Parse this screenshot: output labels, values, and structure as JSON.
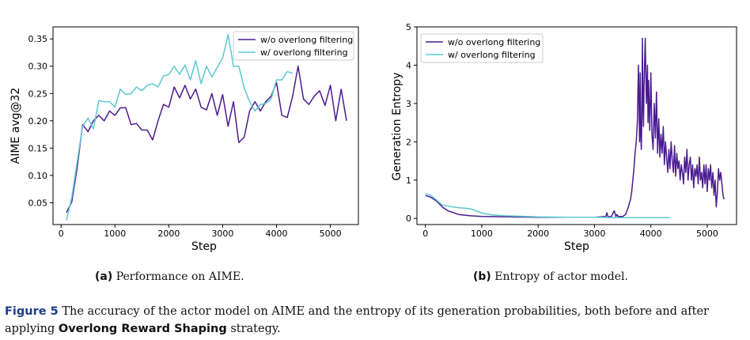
{
  "colors": {
    "without": "#4b1c8f",
    "with": "#5cc8d2"
  },
  "chart_data": [
    {
      "type": "line",
      "id": "a",
      "ylabel": "AIME avg@32",
      "xlabel": "Step",
      "xlim": [
        -150,
        5520
      ],
      "ylim": [
        0.01,
        0.372
      ],
      "xticks": [
        0,
        1000,
        2000,
        3000,
        4000,
        5000
      ],
      "yticks": [
        0.05,
        0.1,
        0.15,
        0.2,
        0.25,
        0.3,
        0.35
      ],
      "ytick_labels": [
        "0.05",
        "0.10",
        "0.15",
        "0.20",
        "0.25",
        "0.30",
        "0.35"
      ],
      "legend": [
        "w/o overlong filtering",
        "w/ overlong filtering"
      ],
      "legend_position": "top-right",
      "series": [
        {
          "name": "w/o overlong filtering",
          "x": [
            100,
            200,
            300,
            400,
            500,
            600,
            700,
            800,
            900,
            1000,
            1100,
            1200,
            1300,
            1400,
            1500,
            1600,
            1700,
            1800,
            1900,
            2000,
            2100,
            2200,
            2300,
            2400,
            2500,
            2600,
            2700,
            2800,
            2900,
            3000,
            3100,
            3200,
            3300,
            3400,
            3500,
            3600,
            3700,
            3800,
            3900,
            4000,
            4100,
            4200,
            4300,
            4400,
            4500,
            4600,
            4700,
            4800,
            4900,
            5000,
            5100,
            5200,
            5300
          ],
          "values": [
            0.032,
            0.052,
            0.115,
            0.193,
            0.18,
            0.2,
            0.21,
            0.2,
            0.218,
            0.21,
            0.224,
            0.224,
            0.193,
            0.195,
            0.183,
            0.183,
            0.165,
            0.2,
            0.23,
            0.225,
            0.262,
            0.242,
            0.265,
            0.24,
            0.258,
            0.225,
            0.22,
            0.25,
            0.21,
            0.248,
            0.19,
            0.235,
            0.16,
            0.17,
            0.218,
            0.235,
            0.218,
            0.235,
            0.245,
            0.27,
            0.21,
            0.206,
            0.245,
            0.3,
            0.24,
            0.23,
            0.245,
            0.255,
            0.228,
            0.265,
            0.2,
            0.258,
            0.2
          ]
        },
        {
          "name": "w/ overlong filtering",
          "x": [
            100,
            200,
            300,
            400,
            500,
            600,
            700,
            800,
            900,
            1000,
            1100,
            1200,
            1300,
            1400,
            1500,
            1600,
            1700,
            1800,
            1900,
            2000,
            2100,
            2200,
            2300,
            2400,
            2500,
            2600,
            2700,
            2800,
            2900,
            3000,
            3100,
            3200,
            3300,
            3400,
            3500,
            3600,
            3700,
            3800,
            3900,
            4000,
            4100,
            4200,
            4300
          ],
          "values": [
            0.018,
            0.06,
            0.125,
            0.19,
            0.205,
            0.185,
            0.237,
            0.235,
            0.235,
            0.225,
            0.258,
            0.248,
            0.25,
            0.262,
            0.255,
            0.265,
            0.268,
            0.262,
            0.282,
            0.285,
            0.3,
            0.285,
            0.302,
            0.275,
            0.31,
            0.268,
            0.3,
            0.28,
            0.298,
            0.315,
            0.358,
            0.3,
            0.3,
            0.26,
            0.235,
            0.218,
            0.23,
            0.232,
            0.24,
            0.275,
            0.275,
            0.29,
            0.287
          ]
        }
      ]
    },
    {
      "type": "line",
      "id": "b",
      "ylabel": "Generation Entropy",
      "xlabel": "Step",
      "xlim": [
        -150,
        5520
      ],
      "ylim": [
        -0.16,
        5.0
      ],
      "xticks": [
        0,
        1000,
        2000,
        3000,
        4000,
        5000
      ],
      "yticks": [
        0,
        1,
        2,
        3,
        4,
        5
      ],
      "ytick_labels": [
        "0",
        "1",
        "2",
        "3",
        "4",
        "5"
      ],
      "legend": [
        "w/o overlong filtering",
        "w/ overlong filtering"
      ],
      "legend_position": "top-left",
      "series": [
        {
          "name": "w/o overlong filtering",
          "x": [
            0,
            100,
            200,
            300,
            400,
            500,
            600,
            800,
            1000,
            1500,
            2000,
            2500,
            3000,
            3200,
            3220,
            3240,
            3300,
            3350,
            3380,
            3400,
            3420,
            3500,
            3550,
            3600,
            3640,
            3660,
            3680,
            3700,
            3720,
            3740,
            3760,
            3780,
            3800,
            3810,
            3820,
            3830,
            3840,
            3850,
            3860,
            3870,
            3880,
            3900,
            3920,
            3940,
            3950,
            3960,
            3980,
            4000,
            4020,
            4040,
            4060,
            4080,
            4100,
            4120,
            4140,
            4160,
            4180,
            4200,
            4220,
            4240,
            4260,
            4280,
            4300,
            4320,
            4340,
            4360,
            4380,
            4400,
            4420,
            4440,
            4460,
            4480,
            4500,
            4520,
            4540,
            4560,
            4580,
            4600,
            4620,
            4640,
            4660,
            4680,
            4700,
            4720,
            4740,
            4760,
            4780,
            4800,
            4820,
            4840,
            4860,
            4880,
            4900,
            4920,
            4940,
            4960,
            4980,
            5000,
            5020,
            5040,
            5060,
            5080,
            5100,
            5120,
            5140,
            5160,
            5180,
            5200,
            5220,
            5240,
            5260,
            5280,
            5300
          ],
          "values": [
            0.6,
            0.55,
            0.45,
            0.3,
            0.2,
            0.15,
            0.1,
            0.07,
            0.05,
            0.04,
            0.03,
            0.03,
            0.03,
            0.05,
            0.15,
            0.04,
            0.05,
            0.2,
            0.05,
            0.1,
            0.05,
            0.05,
            0.1,
            0.3,
            0.5,
            0.7,
            1.0,
            1.3,
            1.7,
            2.0,
            2.5,
            4.0,
            2.0,
            3.8,
            2.2,
            1.8,
            2.6,
            4.7,
            3.0,
            2.4,
            3.5,
            4.7,
            3.0,
            4.0,
            2.5,
            3.6,
            2.3,
            3.8,
            2.2,
            1.8,
            3.0,
            2.1,
            3.3,
            1.7,
            2.6,
            1.6,
            2.2,
            1.7,
            2.4,
            1.4,
            2.0,
            1.6,
            1.2,
            1.8,
            1.3,
            2.0,
            1.5,
            1.2,
            1.9,
            1.1,
            1.7,
            1.3,
            1.5,
            1.0,
            1.4,
            1.2,
            0.9,
            1.6,
            1.2,
            1.8,
            1.0,
            1.4,
            1.6,
            1.0,
            1.4,
            0.8,
            1.3,
            1.1,
            1.4,
            0.9,
            1.6,
            1.0,
            1.2,
            0.8,
            1.4,
            0.9,
            1.4,
            0.7,
            1.3,
            1.0,
            1.4,
            0.8,
            1.2,
            0.6,
            1.0,
            0.3,
            0.7,
            1.3,
            1.0,
            1.2,
            0.9,
            0.6,
            0.5
          ]
        },
        {
          "name": "w/ overlong filtering",
          "x": [
            0,
            100,
            200,
            300,
            400,
            500,
            600,
            700,
            800,
            900,
            1000,
            1200,
            1400,
            1600,
            1800,
            2000,
            2500,
            3000,
            3500,
            4000,
            4340
          ],
          "values": [
            0.65,
            0.6,
            0.48,
            0.35,
            0.32,
            0.3,
            0.28,
            0.27,
            0.25,
            0.2,
            0.14,
            0.09,
            0.07,
            0.06,
            0.05,
            0.04,
            0.03,
            0.03,
            0.02,
            0.02,
            0.02
          ]
        }
      ]
    }
  ],
  "subcaptions": [
    {
      "tag": "(a)",
      "text": "Performance on AIME."
    },
    {
      "tag": "(b)",
      "text": "Entropy of actor model."
    }
  ],
  "caption": {
    "label": "Figure 5",
    "part1": "The accuracy of the actor model on AIME and the entropy of its generation probabilities, both before and after applying",
    "bold": "Overlong Reward Shaping",
    "part2": "strategy."
  }
}
